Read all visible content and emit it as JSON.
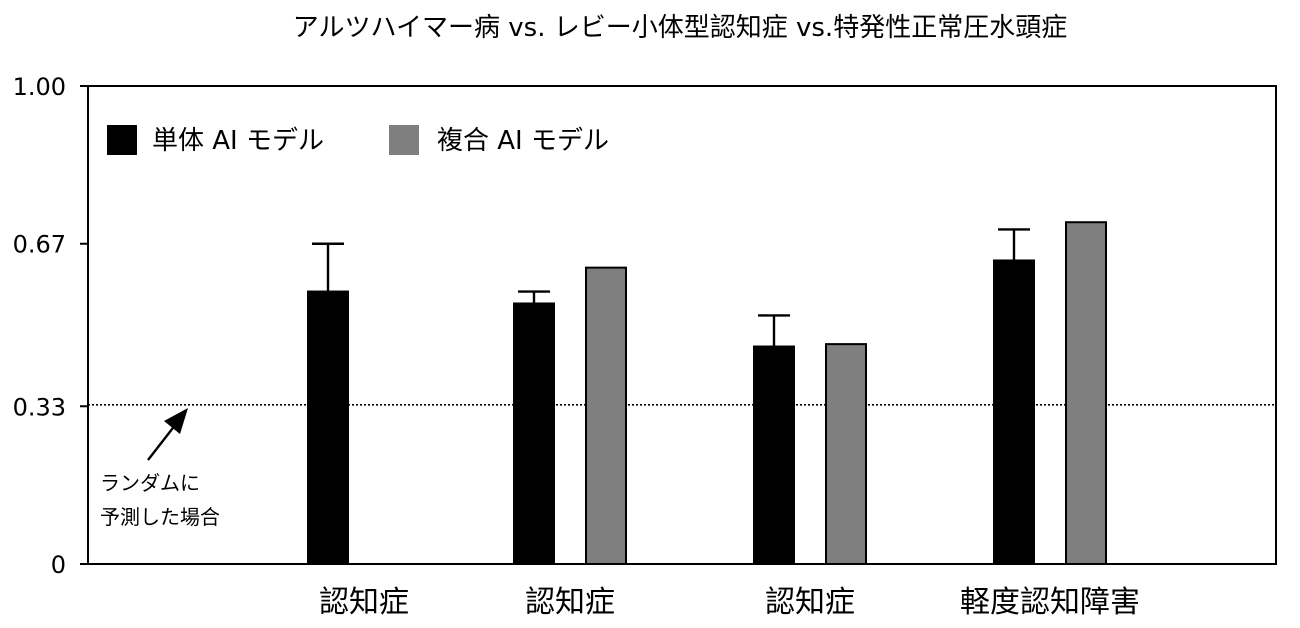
{
  "chart_data": {
    "type": "bar",
    "title": "アルツハイマー病 vs. レビー小体型認知症 vs.特発性正常圧水頭症",
    "xlabel": "",
    "ylabel": "",
    "ylim": [
      0,
      1.0
    ],
    "yticks": [
      "1.00",
      "0.67",
      "0.33",
      "0"
    ],
    "ytick_values": [
      1.0,
      0.67,
      0.33,
      0
    ],
    "categories": [
      "認知症",
      "認知症",
      "認知症",
      "軽度認知障害"
    ],
    "series": [
      {
        "name": "単体 AI モデル",
        "color": "#000000",
        "values": [
          0.57,
          0.545,
          0.455,
          0.635
        ],
        "error_upper": [
          0.67,
          0.57,
          0.52,
          0.7
        ]
      },
      {
        "name": "複合 AI モデル",
        "color": "#7f7f7f",
        "values": [
          null,
          0.62,
          0.46,
          0.715
        ]
      }
    ],
    "reference_line": {
      "value": 0.333,
      "style": "dotted"
    },
    "annotation": {
      "lines": [
        "ランダムに",
        "予測した場合"
      ]
    },
    "legend_position": "top-left",
    "grid": false
  }
}
